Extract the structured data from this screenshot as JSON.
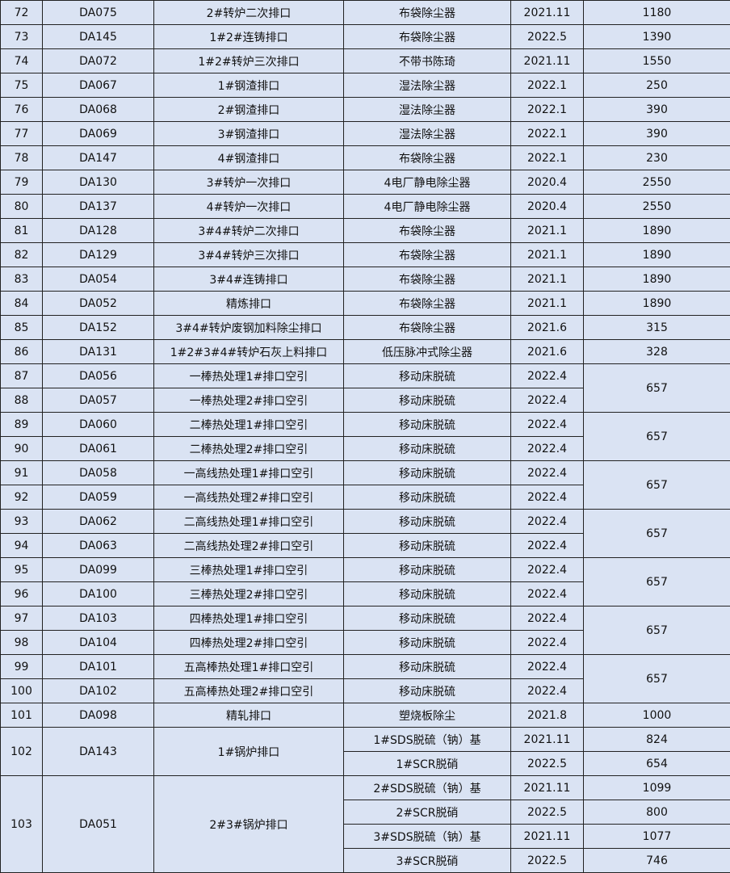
{
  "table": {
    "background": "#dae3f3",
    "blocks": [
      {
        "type": "single",
        "no": "72",
        "code": "DA075",
        "outlet": "2#转炉二次排口",
        "method": "布袋除尘器",
        "date": "2021.11",
        "value": "1180"
      },
      {
        "type": "single",
        "no": "73",
        "code": "DA145",
        "outlet": "1#2#连铸排口",
        "method": "布袋除尘器",
        "date": "2022.5",
        "value": "1390"
      },
      {
        "type": "single",
        "no": "74",
        "code": "DA072",
        "outlet": "1#2#转炉三次排口",
        "method": "不带书陈琦",
        "date": "2021.11",
        "value": "1550"
      },
      {
        "type": "single",
        "no": "75",
        "code": "DA067",
        "outlet": "1#钢渣排口",
        "method": "湿法除尘器",
        "date": "2022.1",
        "value": "250"
      },
      {
        "type": "single",
        "no": "76",
        "code": "DA068",
        "outlet": "2#钢渣排口",
        "method": "湿法除尘器",
        "date": "2022.1",
        "value": "390"
      },
      {
        "type": "single",
        "no": "77",
        "code": "DA069",
        "outlet": "3#钢渣排口",
        "method": "湿法除尘器",
        "date": "2022.1",
        "value": "390"
      },
      {
        "type": "single",
        "no": "78",
        "code": "DA147",
        "outlet": "4#钢渣排口",
        "method": "布袋除尘器",
        "date": "2022.1",
        "value": "230"
      },
      {
        "type": "single",
        "no": "79",
        "code": "DA130",
        "outlet": "3#转炉一次排口",
        "method": "4电厂静电除尘器",
        "date": "2020.4",
        "value": "2550"
      },
      {
        "type": "single",
        "no": "80",
        "code": "DA137",
        "outlet": "4#转炉一次排口",
        "method": "4电厂静电除尘器",
        "date": "2020.4",
        "value": "2550"
      },
      {
        "type": "single",
        "no": "81",
        "code": "DA128",
        "outlet": "3#4#转炉二次排口",
        "method": "布袋除尘器",
        "date": "2021.1",
        "value": "1890"
      },
      {
        "type": "single",
        "no": "82",
        "code": "DA129",
        "outlet": "3#4#转炉三次排口",
        "method": "布袋除尘器",
        "date": "2021.1",
        "value": "1890"
      },
      {
        "type": "single",
        "no": "83",
        "code": "DA054",
        "outlet": "3#4#连铸排口",
        "method": "布袋除尘器",
        "date": "2021.1",
        "value": "1890"
      },
      {
        "type": "single",
        "no": "84",
        "code": "DA052",
        "outlet": "精炼排口",
        "method": "布袋除尘器",
        "date": "2021.1",
        "value": "1890"
      },
      {
        "type": "single",
        "no": "85",
        "code": "DA152",
        "outlet": "3#4#转炉废钢加料除尘排口",
        "method": "布袋除尘器",
        "date": "2021.6",
        "value": "315"
      },
      {
        "type": "single",
        "no": "86",
        "code": "DA131",
        "outlet": "1#2#3#4#转炉石灰上料排口",
        "method": "低压脉冲式除尘器",
        "date": "2021.6",
        "value": "328"
      },
      {
        "type": "shared_value",
        "value": "657",
        "items": [
          {
            "no": "87",
            "code": "DA056",
            "outlet": "一棒热处理1#排口空引",
            "method": "移动床脱硫",
            "date": "2022.4"
          },
          {
            "no": "88",
            "code": "DA057",
            "outlet": "一棒热处理2#排口空引",
            "method": "移动床脱硫",
            "date": "2022.4"
          }
        ]
      },
      {
        "type": "shared_value",
        "value": "657",
        "items": [
          {
            "no": "89",
            "code": "DA060",
            "outlet": "二棒热处理1#排口空引",
            "method": "移动床脱硫",
            "date": "2022.4"
          },
          {
            "no": "90",
            "code": "DA061",
            "outlet": "二棒热处理2#排口空引",
            "method": "移动床脱硫",
            "date": "2022.4"
          }
        ]
      },
      {
        "type": "shared_value",
        "value": "657",
        "items": [
          {
            "no": "91",
            "code": "DA058",
            "outlet": "一高线热处理1#排口空引",
            "method": "移动床脱硫",
            "date": "2022.4"
          },
          {
            "no": "92",
            "code": "DA059",
            "outlet": "一高线热处理2#排口空引",
            "method": "移动床脱硫",
            "date": "2022.4"
          }
        ]
      },
      {
        "type": "shared_value",
        "value": "657",
        "items": [
          {
            "no": "93",
            "code": "DA062",
            "outlet": "二高线热处理1#排口空引",
            "method": "移动床脱硫",
            "date": "2022.4"
          },
          {
            "no": "94",
            "code": "DA063",
            "outlet": "二高线热处理2#排口空引",
            "method": "移动床脱硫",
            "date": "2022.4"
          }
        ]
      },
      {
        "type": "shared_value",
        "value": "657",
        "items": [
          {
            "no": "95",
            "code": "DA099",
            "outlet": "三棒热处理1#排口空引",
            "method": "移动床脱硫",
            "date": "2022.4"
          },
          {
            "no": "96",
            "code": "DA100",
            "outlet": "三棒热处理2#排口空引",
            "method": "移动床脱硫",
            "date": "2022.4"
          }
        ]
      },
      {
        "type": "shared_value",
        "value": "657",
        "items": [
          {
            "no": "97",
            "code": "DA103",
            "outlet": "四棒热处理1#排口空引",
            "method": "移动床脱硫",
            "date": "2022.4"
          },
          {
            "no": "98",
            "code": "DA104",
            "outlet": "四棒热处理2#排口空引",
            "method": "移动床脱硫",
            "date": "2022.4"
          }
        ]
      },
      {
        "type": "shared_value",
        "value": "657",
        "items": [
          {
            "no": "99",
            "code": "DA101",
            "outlet": "五高棒热处理1#排口空引",
            "method": "移动床脱硫",
            "date": "2022.4"
          },
          {
            "no": "100",
            "code": "DA102",
            "outlet": "五高棒热处理2#排口空引",
            "method": "移动床脱硫",
            "date": "2022.4"
          }
        ]
      },
      {
        "type": "single",
        "no": "101",
        "code": "DA098",
        "outlet": "精轧排口",
        "method": "塑烧板除尘",
        "date": "2021.8",
        "value": "1000"
      },
      {
        "type": "multi_treatment",
        "no": "102",
        "code": "DA143",
        "outlet": "1#锅炉排口",
        "treatments": [
          {
            "method": "1#SDS脱硫（钠）基",
            "date": "2021.11",
            "value": "824"
          },
          {
            "method": "1#SCR脱硝",
            "date": "2022.5",
            "value": "654"
          }
        ]
      },
      {
        "type": "multi_treatment",
        "no": "103",
        "code": "DA051",
        "outlet": "2#3#锅炉排口",
        "treatments": [
          {
            "method": "2#SDS脱硫（钠）基",
            "date": "2021.11",
            "value": "1099"
          },
          {
            "method": "2#SCR脱硝",
            "date": "2022.5",
            "value": "800"
          },
          {
            "method": "3#SDS脱硫（钠）基",
            "date": "2021.11",
            "value": "1077"
          },
          {
            "method": "3#SCR脱硝",
            "date": "2022.5",
            "value": "746"
          }
        ]
      }
    ]
  }
}
